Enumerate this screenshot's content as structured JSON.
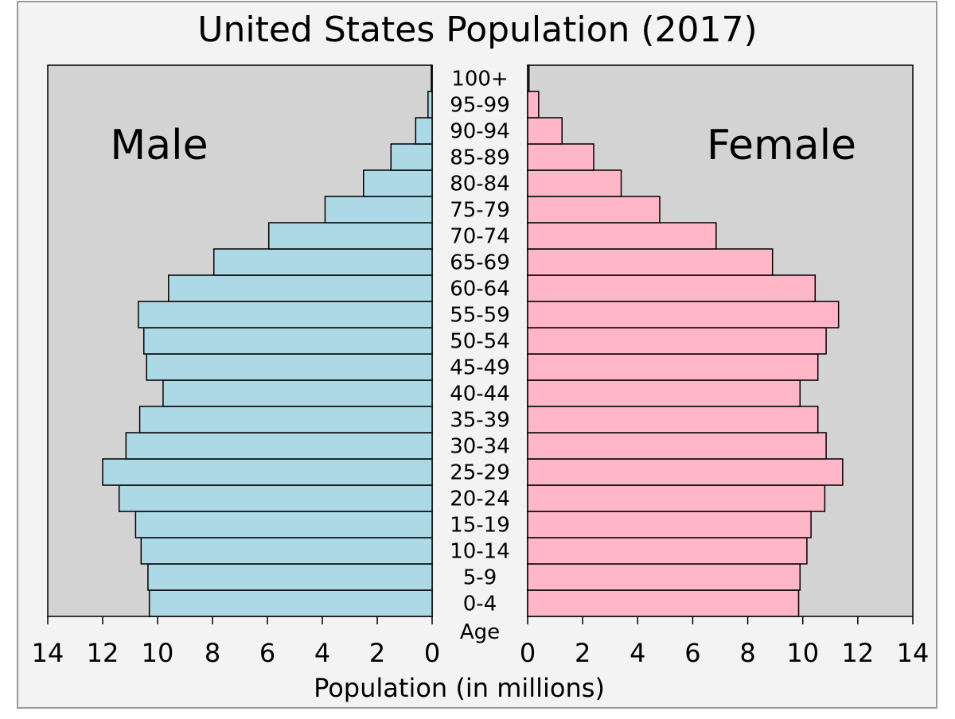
{
  "chart_data": {
    "type": "bar",
    "title": "United States Population (2017)",
    "xlabel": "Population (in millions)",
    "age_axis_label": "Age",
    "left_label": "Male",
    "right_label": "Female",
    "xlim": [
      0,
      14
    ],
    "x_ticks": [
      "0",
      "2",
      "4",
      "6",
      "8",
      "10",
      "12",
      "14"
    ],
    "categories": [
      "0-4",
      "5-9",
      "10-14",
      "15-19",
      "20-24",
      "25-29",
      "30-34",
      "35-39",
      "40-44",
      "45-49",
      "50-54",
      "55-59",
      "60-64",
      "65-69",
      "70-74",
      "75-79",
      "80-84",
      "85-89",
      "90-94",
      "95-99",
      "100+"
    ],
    "series": [
      {
        "name": "Male",
        "side": "left",
        "color": "#add8e6",
        "values": [
          10.3,
          10.35,
          10.6,
          10.8,
          11.4,
          12.0,
          11.15,
          10.65,
          9.8,
          10.4,
          10.5,
          10.7,
          9.6,
          7.95,
          5.95,
          3.9,
          2.5,
          1.5,
          0.6,
          0.15,
          0.03
        ]
      },
      {
        "name": "Female",
        "side": "right",
        "color": "#ffb6c6",
        "values": [
          9.85,
          9.9,
          10.15,
          10.3,
          10.8,
          11.45,
          10.85,
          10.55,
          9.9,
          10.55,
          10.85,
          11.3,
          10.45,
          8.9,
          6.85,
          4.8,
          3.4,
          2.4,
          1.25,
          0.4,
          0.05
        ]
      }
    ],
    "colors": {
      "background": "#f3f3f3",
      "plot_area": "#d3d3d3",
      "male_bar": "#add8e6",
      "female_bar": "#ffb6c6",
      "bar_stroke": "#000000"
    },
    "grid": false
  }
}
